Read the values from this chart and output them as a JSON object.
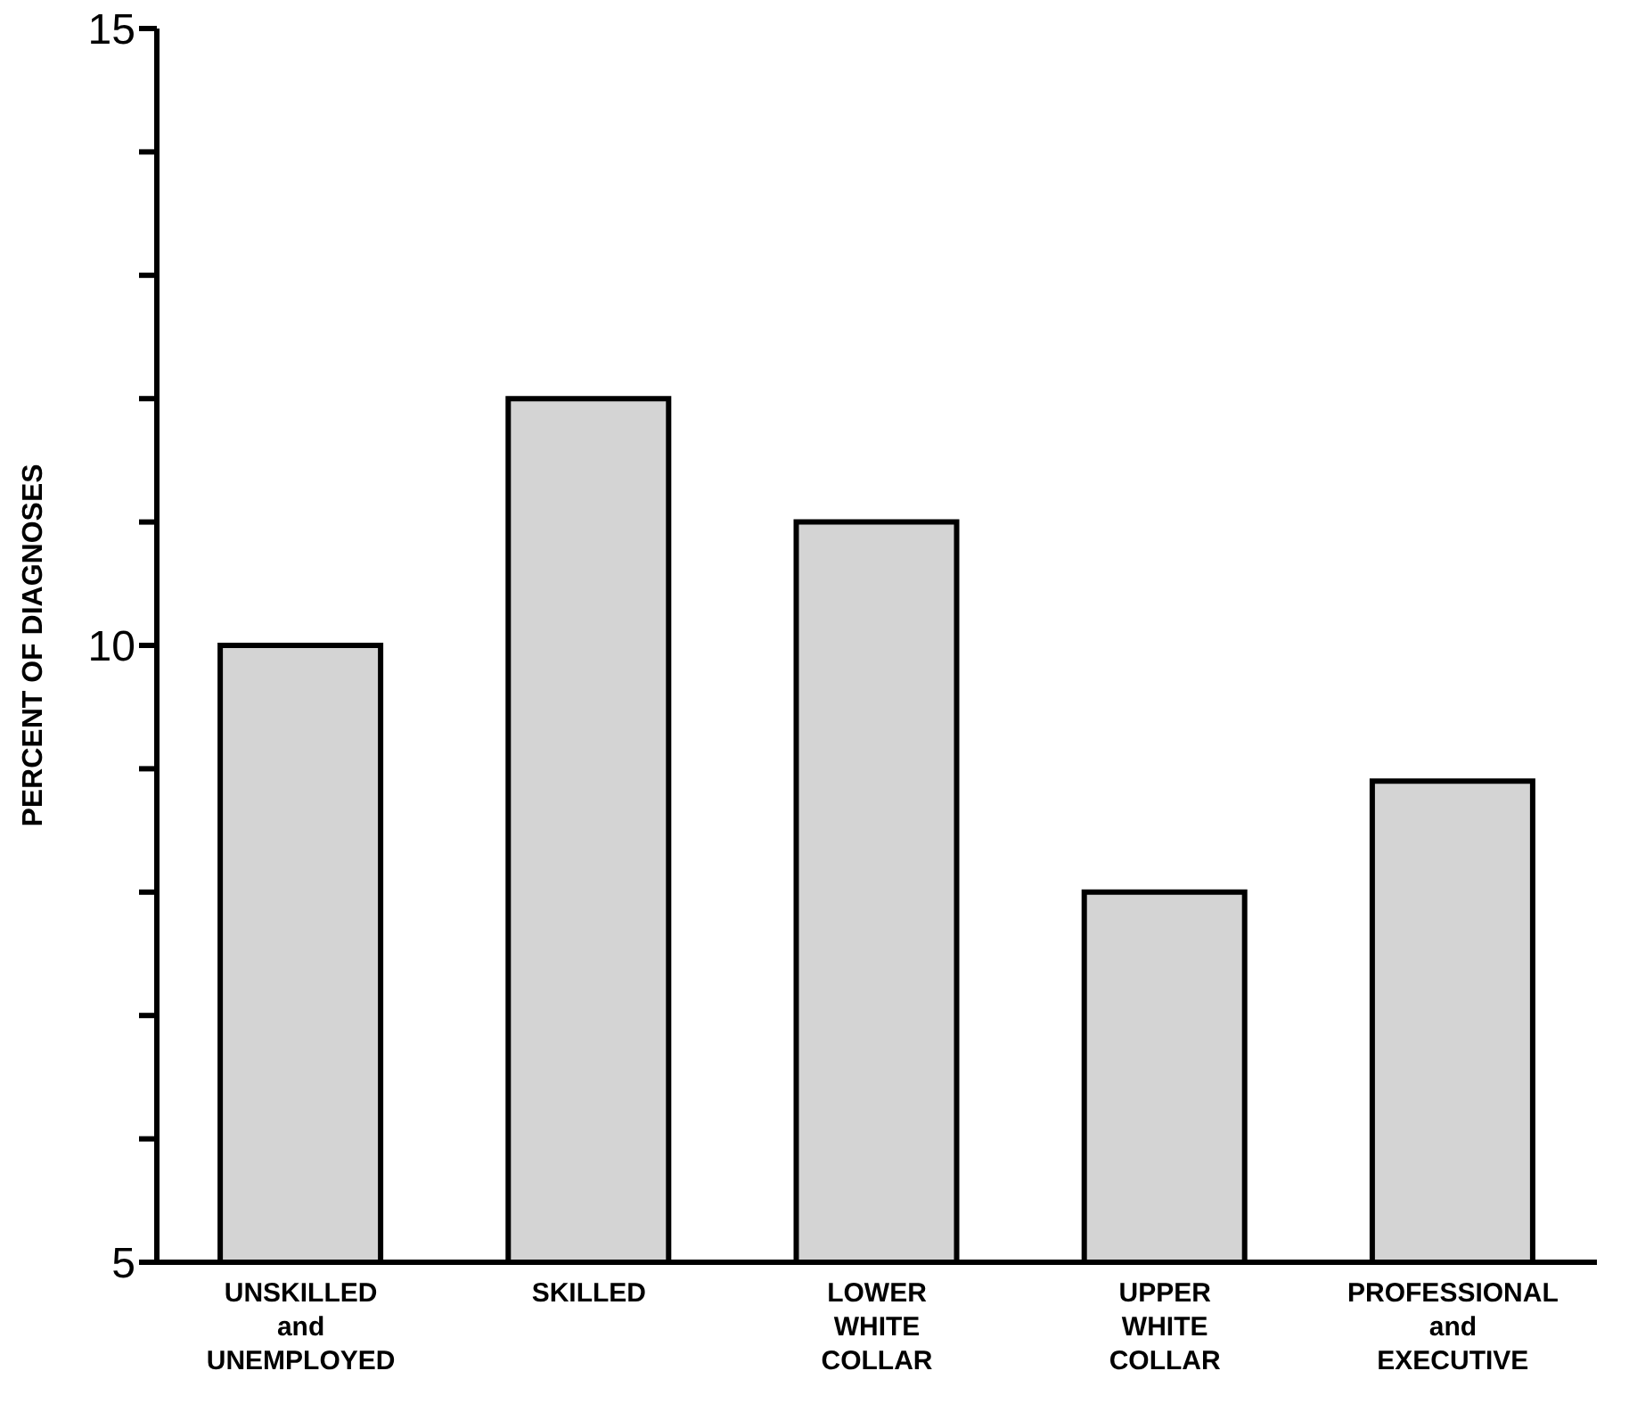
{
  "chart_data": {
    "type": "bar",
    "ylabel": "PERCENT OF DIAGNOSES",
    "categories": [
      "UNSKILLED\nand\nUNEMPLOYED",
      "SKILLED",
      "LOWER\nWHITE\nCOLLAR",
      "UPPER\nWHITE\nCOLLAR",
      "PROFESSIONAL\nand\nEXECUTIVE"
    ],
    "values": [
      10.0,
      12.0,
      11.0,
      8.0,
      8.9
    ],
    "color": "#d4d4d4",
    "ylim": [
      5,
      15
    ],
    "yticks": [
      5,
      {
        "value": 6,
        "label": null
      },
      {
        "value": 7,
        "label": null
      },
      {
        "value": 8,
        "label": null
      },
      {
        "value": 9,
        "label": null
      },
      10,
      {
        "value": 11,
        "label": null
      },
      {
        "value": 12,
        "label": null
      },
      {
        "value": 13,
        "label": null
      },
      {
        "value": 14,
        "label": null
      },
      15
    ],
    "grid": false,
    "legend": false
  }
}
